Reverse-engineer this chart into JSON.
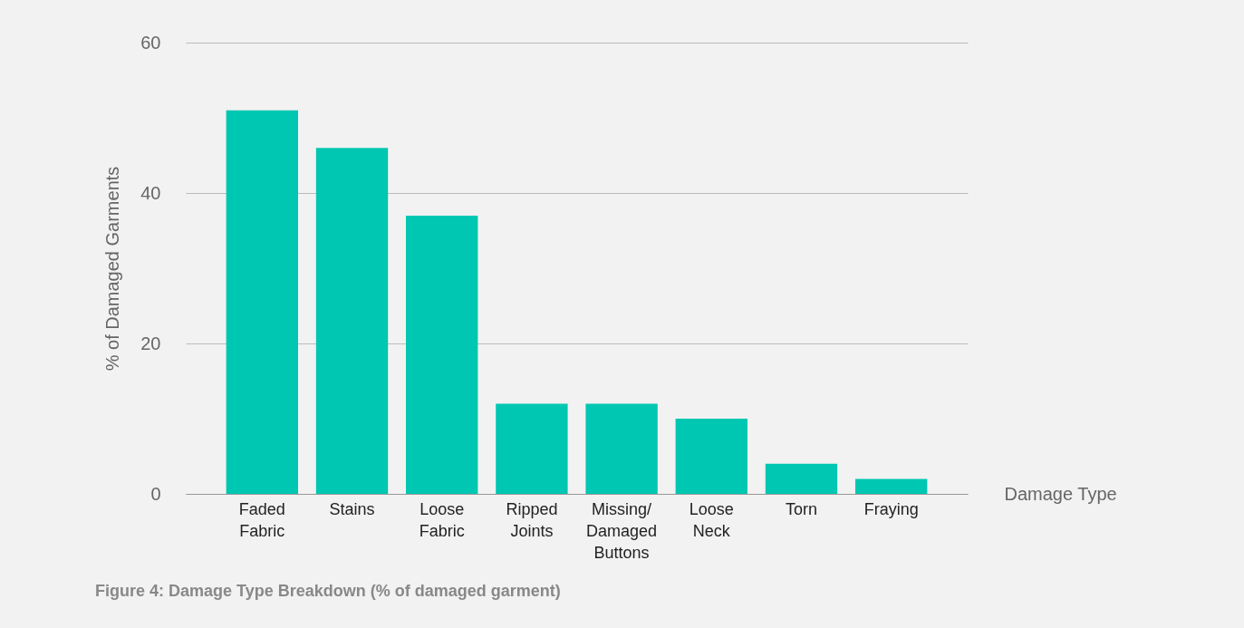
{
  "chart_data": {
    "type": "bar",
    "categories": [
      "Faded Fabric",
      "Stains",
      "Loose Fabric",
      "Ripped Joints",
      "Missing/Damaged Buttons",
      "Loose Neck",
      "Torn",
      "Fraying"
    ],
    "values": [
      51,
      46,
      37,
      12,
      12,
      10,
      4,
      2
    ],
    "color": "#00c7b1",
    "xlabel": "Damage Type",
    "ylabel": "% of Damaged Garments",
    "ylim": [
      0,
      60
    ],
    "yticks": [
      0,
      20,
      40,
      60
    ],
    "grid": "y",
    "annotations": [
      "Figure 4: Damage Type Breakdown (% of damaged garment)"
    ]
  }
}
